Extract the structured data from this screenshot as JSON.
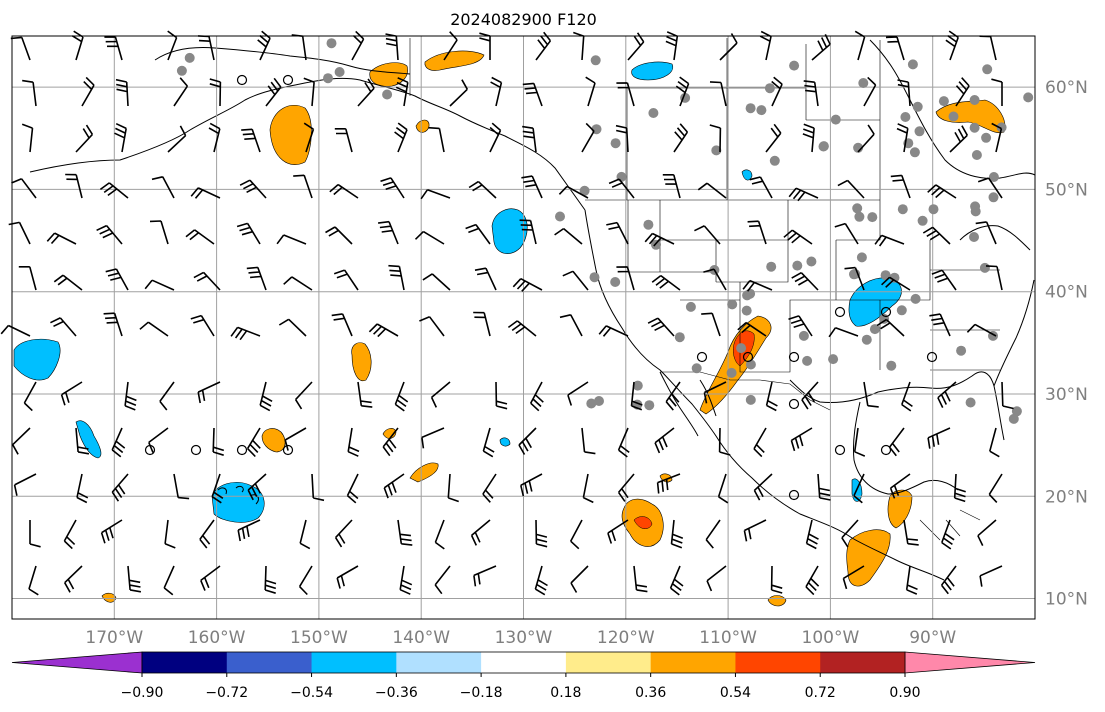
{
  "title": "2024082900 F120",
  "map": {
    "lon_range": [
      -180,
      -80
    ],
    "lat_range": [
      8,
      65
    ],
    "lat_ticks": [
      {
        "value": 10,
        "label": "10°N"
      },
      {
        "value": 20,
        "label": "20°N"
      },
      {
        "value": 30,
        "label": "30°N"
      },
      {
        "value": 40,
        "label": "40°N"
      },
      {
        "value": 50,
        "label": "50°N"
      },
      {
        "value": 60,
        "label": "60°N"
      }
    ],
    "lon_ticks": [
      {
        "value": -170,
        "label": "170°W"
      },
      {
        "value": -160,
        "label": "160°W"
      },
      {
        "value": -150,
        "label": "150°W"
      },
      {
        "value": -140,
        "label": "140°W"
      },
      {
        "value": -130,
        "label": "130°W"
      },
      {
        "value": -120,
        "label": "120°W"
      },
      {
        "value": -110,
        "label": "110°W"
      },
      {
        "value": -100,
        "label": "100°W"
      },
      {
        "value": -90,
        "label": "90°W"
      }
    ],
    "grid": true,
    "tick_color": "#7f7f7f"
  },
  "colorbar": {
    "orientation": "horizontal",
    "extend": "both",
    "under_color": "#9b30d0",
    "over_color": "#ff88aa",
    "colors": [
      "#000080",
      "#3a5fcd",
      "#00bfff",
      "#b0e0ff",
      "#ffffff",
      "#ffec8b",
      "#ffa500",
      "#ff4500",
      "#b22222"
    ],
    "levels": [
      -0.9,
      -0.72,
      -0.54,
      -0.36,
      -0.18,
      0.18,
      0.36,
      0.54,
      0.72,
      0.9
    ],
    "labels": [
      "−0.90",
      "−0.72",
      "−0.54",
      "−0.36",
      "−0.18",
      "0.18",
      "0.36",
      "0.54",
      "0.72",
      "0.90"
    ]
  }
}
